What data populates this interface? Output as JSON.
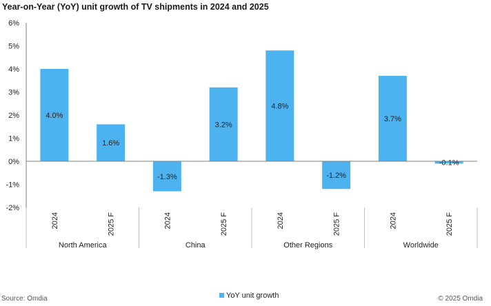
{
  "title": "Year-on-Year (YoY) unit growth of TV shipments in 2024 and 2025",
  "footer": {
    "source": "Source: Omdia",
    "copyright": "© 2025 Omdia"
  },
  "colors": {
    "bar": "#4DB3F0",
    "axis": "#7f7f7f",
    "grid": "#d9d9d9"
  },
  "chart_data": {
    "type": "bar",
    "groups": [
      "North America",
      "China",
      "Other Regions",
      "Worldwide"
    ],
    "categories": [
      "2024",
      "2025 F",
      "2024",
      "2025 F",
      "2024",
      "2025 F",
      "2024",
      "2025 F"
    ],
    "series": [
      {
        "name": "YoY unit growth",
        "values": [
          4.0,
          1.6,
          -1.3,
          3.2,
          4.8,
          -1.2,
          3.7,
          -0.1
        ],
        "labels": [
          "4.0%",
          "1.6%",
          "-1.3%",
          "3.2%",
          "4.8%",
          "-1.2%",
          "3.7%",
          "-0.1%"
        ]
      }
    ],
    "yticks": [
      "6%",
      "5%",
      "4%",
      "3%",
      "2%",
      "1%",
      "0%",
      "-1%",
      "-2%"
    ],
    "ytick_values": [
      6,
      5,
      4,
      3,
      2,
      1,
      0,
      -1,
      -2
    ],
    "ylim": [
      -2,
      6
    ],
    "grid": false,
    "legend": "bottom-center"
  }
}
